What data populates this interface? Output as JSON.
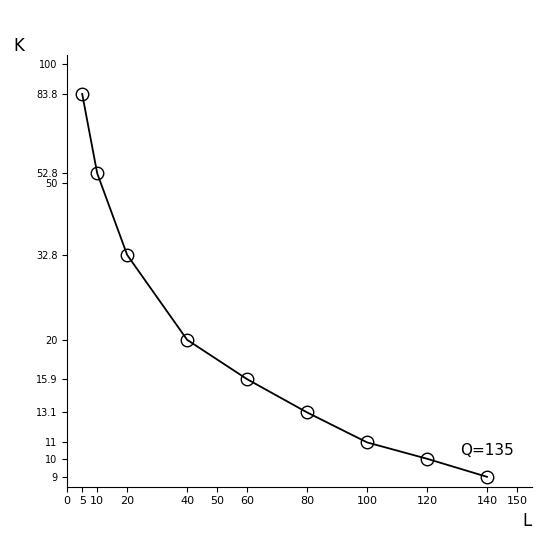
{
  "chart_data": {
    "type": "line",
    "x_label": "L",
    "y_label": "K",
    "annotation": "Q=135",
    "x": [
      5,
      10,
      20,
      40,
      60,
      80,
      100,
      120,
      140
    ],
    "values": [
      83.8,
      52.8,
      32.8,
      20,
      15.9,
      13.1,
      11,
      10,
      9
    ],
    "color": "#000000",
    "marker": "o",
    "line_style": "solid",
    "log": "y",
    "xlim": [
      0,
      155
    ],
    "ylim": [
      8.5,
      105
    ],
    "xticks": [
      0,
      5,
      10,
      20,
      40,
      50,
      60,
      80,
      100,
      120,
      140,
      150
    ],
    "yticks": [
      9,
      10,
      11,
      13.1,
      15.9,
      20,
      32.8,
      50,
      52.8,
      83.8,
      100
    ],
    "grid": false
  }
}
